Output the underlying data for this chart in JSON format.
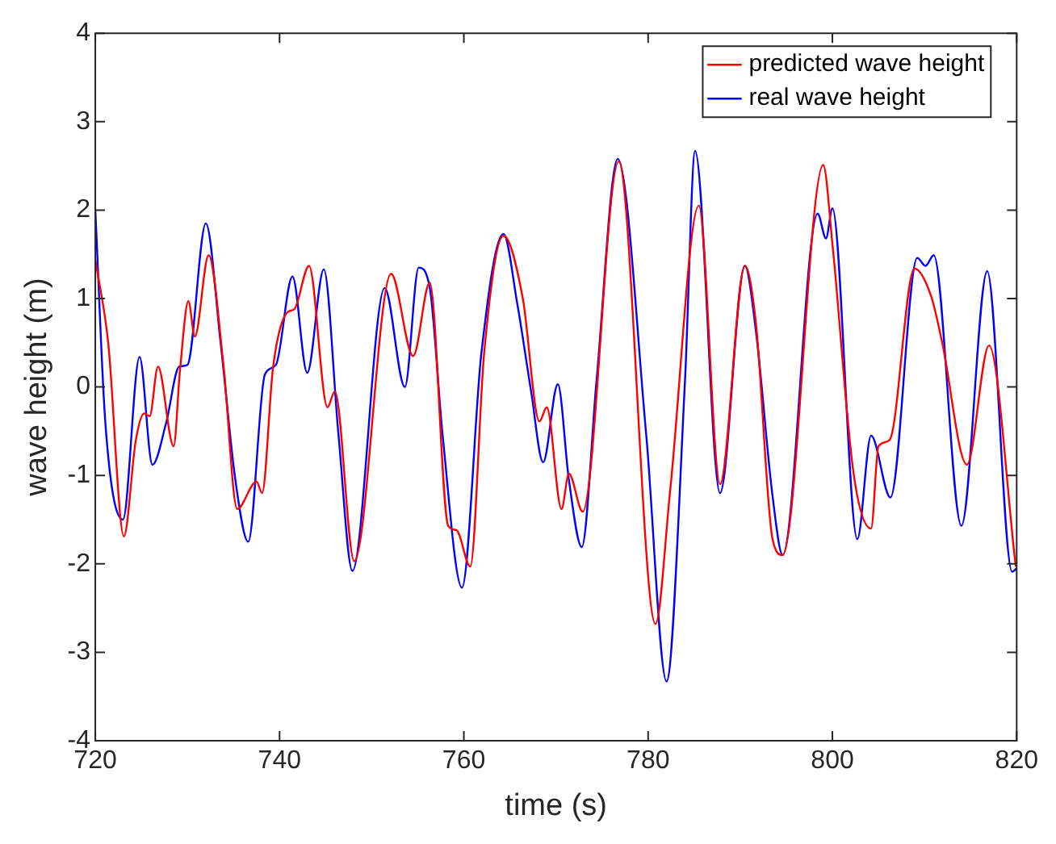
{
  "chart_data": {
    "type": "line",
    "xlabel": "time (s)",
    "ylabel": "wave height (m)",
    "xlim": [
      720,
      820
    ],
    "xticks": [
      720,
      740,
      760,
      780,
      800,
      820
    ],
    "ylim": [
      -4,
      4
    ],
    "yticks": [
      -4,
      -3,
      -2,
      -1,
      0,
      1,
      2,
      3,
      4
    ],
    "grid": false,
    "legend": "top right",
    "marker": "none",
    "line_style": "solid",
    "series": [
      {
        "name": "predicted wave height",
        "color": "#ff0000",
        "x": [
          720,
          721.4,
          723.1,
          724.4,
          725.3,
          725.9,
          726.8,
          728.5,
          729.2,
          730.1,
          730.8,
          732.3,
          733.9,
          735.4,
          737.5,
          738.1,
          739.3,
          740.8,
          741.6,
          743.2,
          745.2,
          746,
          748.1,
          752.1,
          754.5,
          756.3,
          758.3,
          759.2,
          760.7,
          762.2,
          764.3,
          766.4,
          768.2,
          769,
          770.6,
          771.4,
          772.9,
          776.8,
          780.8,
          782.4,
          785.5,
          787.8,
          790.5,
          791.7,
          793.5,
          794.6,
          799,
          800,
          802.3,
          804.2,
          805,
          806.2,
          808.9,
          810.7,
          811.9,
          814.6,
          817,
          819.9
        ],
        "values": [
          1.44,
          0.5,
          -1.69,
          -0.6,
          -0.3,
          -0.33,
          0.23,
          -0.67,
          0.2,
          0.97,
          0.57,
          1.49,
          0.26,
          -1.38,
          -1.07,
          -1.2,
          0.23,
          0.84,
          0.88,
          1.37,
          -0.23,
          -0.05,
          -1.97,
          1.28,
          0.35,
          1.18,
          -1.57,
          -1.62,
          -2.03,
          0.38,
          1.71,
          1.0,
          -0.39,
          -0.23,
          -1.38,
          -0.98,
          -1.41,
          2.55,
          -2.68,
          -1.16,
          2.05,
          -1.1,
          1.37,
          0.72,
          -1.72,
          -1.9,
          2.51,
          1.62,
          -0.98,
          -1.6,
          -0.67,
          -0.6,
          1.34,
          1.03,
          0.51,
          -0.88,
          0.47,
          -2.03
        ]
      },
      {
        "name": "real wave height",
        "color": "#0000ff",
        "x": [
          720,
          721.1,
          723,
          724.8,
          726.2,
          727.7,
          729.1,
          730,
          732,
          733.6,
          735.2,
          736.6,
          738.4,
          739.6,
          741.4,
          743,
          744.8,
          746.4,
          747.9,
          751.4,
          753.6,
          755.1,
          756.3,
          757.7,
          759.8,
          761.9,
          764.3,
          765.8,
          767.3,
          768.6,
          770.2,
          771.4,
          772.8,
          774.4,
          776.7,
          779.8,
          782,
          784,
          785.1,
          787.8,
          790.5,
          791.7,
          793.5,
          794.6,
          798.4,
          799.3,
          800,
          802.7,
          804.2,
          806.3,
          809.2,
          810.1,
          811,
          814,
          816.8,
          819.5,
          820
        ],
        "values": [
          2.0,
          -0.42,
          -1.5,
          0.34,
          -0.88,
          -0.4,
          0.23,
          0.25,
          1.85,
          0.5,
          -1.05,
          -1.75,
          0.14,
          0.25,
          1.25,
          0.16,
          1.33,
          -0.55,
          -2.08,
          1.12,
          0,
          1.35,
          1.12,
          -0.55,
          -2.27,
          0.38,
          1.73,
          0.94,
          -0.05,
          -0.85,
          0.03,
          -1.05,
          -1.81,
          0.07,
          2.58,
          -0.55,
          -3.33,
          0.07,
          2.67,
          -1.2,
          1.37,
          0.63,
          -1.23,
          -1.9,
          1.96,
          1.68,
          2.02,
          -1.72,
          -0.55,
          -1.25,
          1.46,
          1.37,
          1.49,
          -1.57,
          1.31,
          -2.09,
          -2.05
        ]
      }
    ]
  }
}
